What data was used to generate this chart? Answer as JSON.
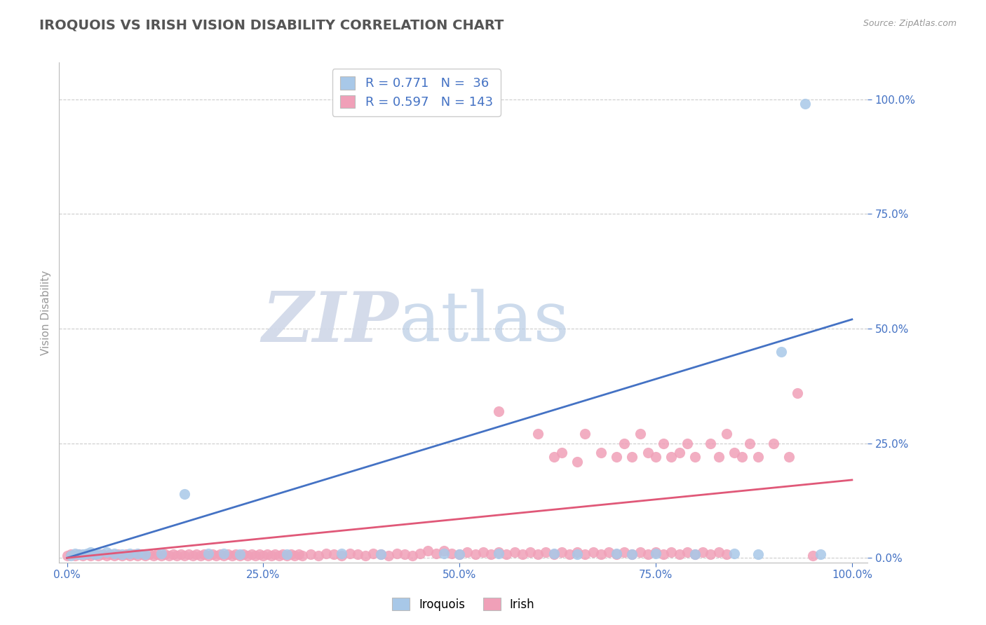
{
  "title": "IROQUOIS VS IRISH VISION DISABILITY CORRELATION CHART",
  "source": "Source: ZipAtlas.com",
  "ylabel": "Vision Disability",
  "xlim": [
    -0.01,
    1.02
  ],
  "ylim": [
    -0.01,
    1.08
  ],
  "xticks": [
    0.0,
    0.25,
    0.5,
    0.75,
    1.0
  ],
  "yticks": [
    0.0,
    0.25,
    0.5,
    0.75,
    1.0
  ],
  "iroquois_color": "#a8c8e8",
  "irish_color": "#f0a0b8",
  "iroquois_line_color": "#4472c4",
  "irish_line_color": "#e05878",
  "iroquois_R": 0.771,
  "iroquois_N": 36,
  "irish_R": 0.597,
  "irish_N": 143,
  "iroquois_scatter": [
    [
      0.005,
      0.005
    ],
    [
      0.01,
      0.01
    ],
    [
      0.015,
      0.008
    ],
    [
      0.02,
      0.008
    ],
    [
      0.025,
      0.01
    ],
    [
      0.03,
      0.012
    ],
    [
      0.035,
      0.008
    ],
    [
      0.04,
      0.01
    ],
    [
      0.05,
      0.012
    ],
    [
      0.06,
      0.01
    ],
    [
      0.07,
      0.008
    ],
    [
      0.08,
      0.01
    ],
    [
      0.09,
      0.01
    ],
    [
      0.1,
      0.008
    ],
    [
      0.12,
      0.01
    ],
    [
      0.15,
      0.14
    ],
    [
      0.18,
      0.01
    ],
    [
      0.2,
      0.01
    ],
    [
      0.22,
      0.008
    ],
    [
      0.28,
      0.008
    ],
    [
      0.35,
      0.01
    ],
    [
      0.4,
      0.008
    ],
    [
      0.48,
      0.01
    ],
    [
      0.5,
      0.008
    ],
    [
      0.55,
      0.01
    ],
    [
      0.62,
      0.01
    ],
    [
      0.65,
      0.008
    ],
    [
      0.7,
      0.01
    ],
    [
      0.72,
      0.008
    ],
    [
      0.75,
      0.01
    ],
    [
      0.8,
      0.008
    ],
    [
      0.85,
      0.01
    ],
    [
      0.88,
      0.008
    ],
    [
      0.91,
      0.45
    ],
    [
      0.94,
      0.99
    ],
    [
      0.96,
      0.008
    ]
  ],
  "irish_scatter": [
    [
      0.0,
      0.005
    ],
    [
      0.005,
      0.008
    ],
    [
      0.01,
      0.005
    ],
    [
      0.015,
      0.008
    ],
    [
      0.02,
      0.005
    ],
    [
      0.025,
      0.008
    ],
    [
      0.03,
      0.005
    ],
    [
      0.035,
      0.008
    ],
    [
      0.04,
      0.005
    ],
    [
      0.045,
      0.008
    ],
    [
      0.05,
      0.005
    ],
    [
      0.055,
      0.008
    ],
    [
      0.06,
      0.005
    ],
    [
      0.065,
      0.008
    ],
    [
      0.07,
      0.005
    ],
    [
      0.075,
      0.008
    ],
    [
      0.08,
      0.005
    ],
    [
      0.085,
      0.008
    ],
    [
      0.09,
      0.005
    ],
    [
      0.095,
      0.008
    ],
    [
      0.1,
      0.005
    ],
    [
      0.105,
      0.008
    ],
    [
      0.11,
      0.005
    ],
    [
      0.115,
      0.008
    ],
    [
      0.12,
      0.005
    ],
    [
      0.125,
      0.008
    ],
    [
      0.13,
      0.005
    ],
    [
      0.135,
      0.008
    ],
    [
      0.14,
      0.005
    ],
    [
      0.145,
      0.008
    ],
    [
      0.15,
      0.005
    ],
    [
      0.155,
      0.008
    ],
    [
      0.16,
      0.005
    ],
    [
      0.165,
      0.008
    ],
    [
      0.17,
      0.005
    ],
    [
      0.175,
      0.008
    ],
    [
      0.18,
      0.005
    ],
    [
      0.185,
      0.008
    ],
    [
      0.19,
      0.005
    ],
    [
      0.195,
      0.008
    ],
    [
      0.2,
      0.005
    ],
    [
      0.205,
      0.008
    ],
    [
      0.21,
      0.005
    ],
    [
      0.215,
      0.008
    ],
    [
      0.22,
      0.005
    ],
    [
      0.225,
      0.008
    ],
    [
      0.23,
      0.005
    ],
    [
      0.235,
      0.008
    ],
    [
      0.24,
      0.005
    ],
    [
      0.245,
      0.008
    ],
    [
      0.25,
      0.005
    ],
    [
      0.255,
      0.008
    ],
    [
      0.26,
      0.005
    ],
    [
      0.265,
      0.008
    ],
    [
      0.27,
      0.005
    ],
    [
      0.275,
      0.008
    ],
    [
      0.28,
      0.005
    ],
    [
      0.285,
      0.008
    ],
    [
      0.29,
      0.005
    ],
    [
      0.295,
      0.008
    ],
    [
      0.3,
      0.005
    ],
    [
      0.31,
      0.008
    ],
    [
      0.32,
      0.005
    ],
    [
      0.33,
      0.01
    ],
    [
      0.34,
      0.008
    ],
    [
      0.35,
      0.005
    ],
    [
      0.36,
      0.01
    ],
    [
      0.37,
      0.008
    ],
    [
      0.38,
      0.005
    ],
    [
      0.39,
      0.01
    ],
    [
      0.4,
      0.008
    ],
    [
      0.41,
      0.005
    ],
    [
      0.42,
      0.01
    ],
    [
      0.43,
      0.008
    ],
    [
      0.44,
      0.005
    ],
    [
      0.45,
      0.01
    ],
    [
      0.46,
      0.015
    ],
    [
      0.47,
      0.01
    ],
    [
      0.48,
      0.015
    ],
    [
      0.49,
      0.01
    ],
    [
      0.5,
      0.008
    ],
    [
      0.51,
      0.012
    ],
    [
      0.52,
      0.008
    ],
    [
      0.53,
      0.012
    ],
    [
      0.54,
      0.008
    ],
    [
      0.55,
      0.012
    ],
    [
      0.56,
      0.008
    ],
    [
      0.57,
      0.012
    ],
    [
      0.58,
      0.008
    ],
    [
      0.59,
      0.012
    ],
    [
      0.6,
      0.008
    ],
    [
      0.61,
      0.012
    ],
    [
      0.62,
      0.008
    ],
    [
      0.63,
      0.012
    ],
    [
      0.64,
      0.008
    ],
    [
      0.65,
      0.012
    ],
    [
      0.55,
      0.32
    ],
    [
      0.6,
      0.27
    ],
    [
      0.62,
      0.22
    ],
    [
      0.63,
      0.23
    ],
    [
      0.65,
      0.21
    ],
    [
      0.66,
      0.27
    ],
    [
      0.68,
      0.23
    ],
    [
      0.7,
      0.22
    ],
    [
      0.71,
      0.25
    ],
    [
      0.72,
      0.22
    ],
    [
      0.73,
      0.27
    ],
    [
      0.74,
      0.23
    ],
    [
      0.75,
      0.22
    ],
    [
      0.76,
      0.25
    ],
    [
      0.77,
      0.22
    ],
    [
      0.78,
      0.23
    ],
    [
      0.79,
      0.25
    ],
    [
      0.8,
      0.22
    ],
    [
      0.82,
      0.25
    ],
    [
      0.83,
      0.22
    ],
    [
      0.84,
      0.27
    ],
    [
      0.85,
      0.23
    ],
    [
      0.86,
      0.22
    ],
    [
      0.87,
      0.25
    ],
    [
      0.88,
      0.22
    ],
    [
      0.9,
      0.25
    ],
    [
      0.92,
      0.22
    ],
    [
      0.93,
      0.36
    ],
    [
      0.66,
      0.008
    ],
    [
      0.67,
      0.012
    ],
    [
      0.68,
      0.008
    ],
    [
      0.69,
      0.012
    ],
    [
      0.7,
      0.008
    ],
    [
      0.71,
      0.012
    ],
    [
      0.72,
      0.008
    ],
    [
      0.73,
      0.012
    ],
    [
      0.74,
      0.008
    ],
    [
      0.75,
      0.012
    ],
    [
      0.76,
      0.008
    ],
    [
      0.77,
      0.012
    ],
    [
      0.78,
      0.008
    ],
    [
      0.79,
      0.012
    ],
    [
      0.8,
      0.008
    ],
    [
      0.81,
      0.012
    ],
    [
      0.82,
      0.008
    ],
    [
      0.83,
      0.012
    ],
    [
      0.84,
      0.008
    ],
    [
      0.95,
      0.005
    ]
  ],
  "iroquois_line": [
    [
      0.0,
      0.0
    ],
    [
      1.0,
      0.52
    ]
  ],
  "irish_line": [
    [
      0.0,
      0.0
    ],
    [
      1.0,
      0.17
    ]
  ],
  "watermark_zip": "ZIP",
  "watermark_atlas": "atlas",
  "background_color": "#ffffff",
  "grid_color": "#cccccc",
  "tick_color": "#4472c4",
  "title_color": "#555555",
  "ylabel_color": "#999999"
}
